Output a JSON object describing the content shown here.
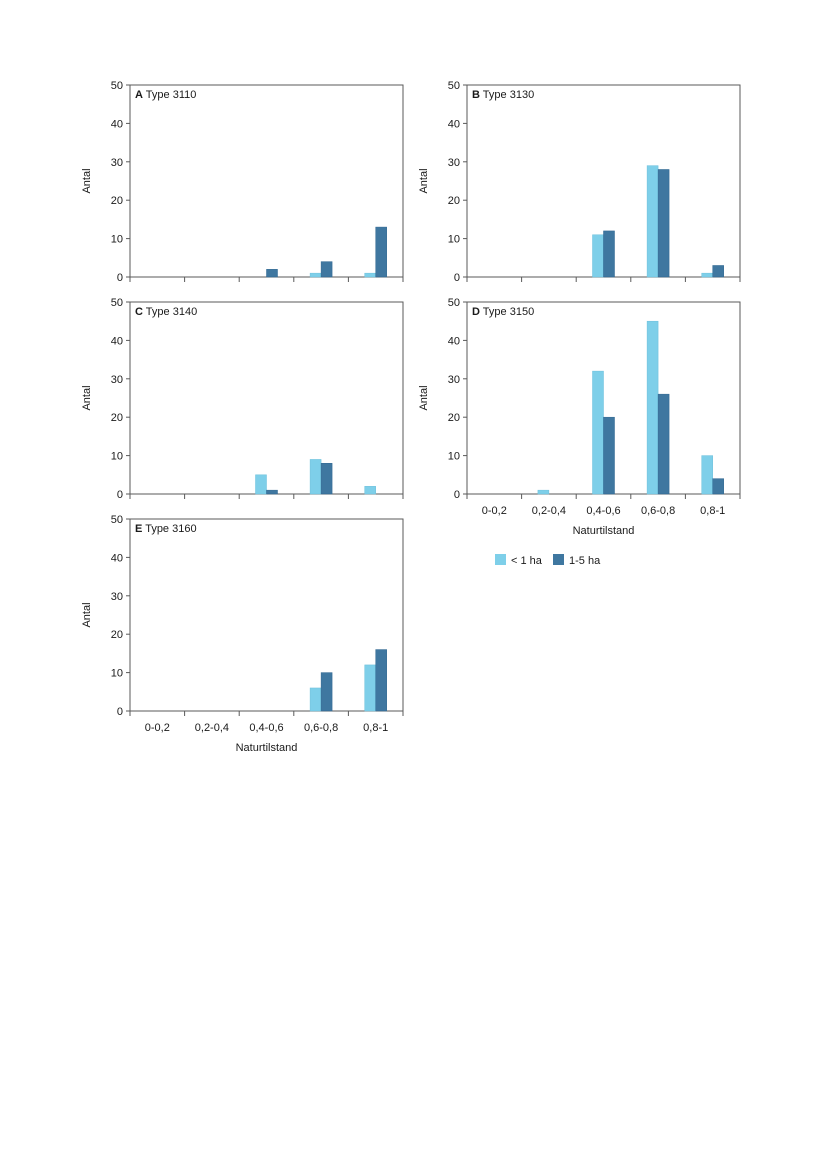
{
  "colors": {
    "light": "#7ecfe9",
    "dark": "#3f77a0",
    "axis": "#5a5a5a"
  },
  "legend": [
    {
      "label": "< 1 ha",
      "color": "#7ecfe9"
    },
    {
      "label": "1-5 ha",
      "color": "#3f77a0"
    }
  ],
  "chart_data": [
    {
      "type": "bar",
      "letter": "A",
      "title": "Type 3110",
      "ylabel": "Antal",
      "xlabel": "",
      "categories": [
        "0-0,2",
        "0,2-0,4",
        "0,4-0,6",
        "0,6-0,8",
        "0,8-1"
      ],
      "show_xticklabels": false,
      "ylim": [
        0,
        50
      ],
      "yticks": [
        0,
        10,
        20,
        30,
        40,
        50
      ],
      "series": [
        {
          "name": "< 1 ha",
          "values": [
            0,
            0,
            0,
            1,
            1
          ]
        },
        {
          "name": "1-5 ha",
          "values": [
            0,
            0,
            2,
            4,
            13
          ]
        }
      ]
    },
    {
      "type": "bar",
      "letter": "B",
      "title": "Type 3130",
      "ylabel": "Antal",
      "xlabel": "",
      "categories": [
        "0-0,2",
        "0,2-0,4",
        "0,4-0,6",
        "0,6-0,8",
        "0,8-1"
      ],
      "show_xticklabels": false,
      "ylim": [
        0,
        50
      ],
      "yticks": [
        0,
        10,
        20,
        30,
        40,
        50
      ],
      "series": [
        {
          "name": "< 1 ha",
          "values": [
            0,
            0,
            11,
            29,
            1
          ]
        },
        {
          "name": "1-5 ha",
          "values": [
            0,
            0,
            12,
            28,
            3
          ]
        }
      ]
    },
    {
      "type": "bar",
      "letter": "C",
      "title": "Type 3140",
      "ylabel": "Antal",
      "xlabel": "",
      "categories": [
        "0-0,2",
        "0,2-0,4",
        "0,4-0,6",
        "0,6-0,8",
        "0,8-1"
      ],
      "show_xticklabels": false,
      "ylim": [
        0,
        50
      ],
      "yticks": [
        0,
        10,
        20,
        30,
        40,
        50
      ],
      "series": [
        {
          "name": "< 1 ha",
          "values": [
            0,
            0,
            5,
            9,
            2
          ]
        },
        {
          "name": "1-5 ha",
          "values": [
            0,
            0,
            1,
            8,
            0
          ]
        }
      ]
    },
    {
      "type": "bar",
      "letter": "D",
      "title": "Type 3150",
      "ylabel": "Antal",
      "xlabel": "Naturtilstand",
      "categories": [
        "0-0,2",
        "0,2-0,4",
        "0,4-0,6",
        "0,6-0,8",
        "0,8-1"
      ],
      "show_xticklabels": true,
      "ylim": [
        0,
        50
      ],
      "yticks": [
        0,
        10,
        20,
        30,
        40,
        50
      ],
      "series": [
        {
          "name": "< 1 ha",
          "values": [
            0,
            1,
            32,
            45,
            10
          ]
        },
        {
          "name": "1-5 ha",
          "values": [
            0,
            0,
            20,
            26,
            4
          ]
        }
      ]
    },
    {
      "type": "bar",
      "letter": "E",
      "title": "Type 3160",
      "ylabel": "Antal",
      "xlabel": "Naturtilstand",
      "categories": [
        "0-0,2",
        "0,2-0,4",
        "0,4-0,6",
        "0,6-0,8",
        "0,8-1"
      ],
      "show_xticklabels": true,
      "ylim": [
        0,
        50
      ],
      "yticks": [
        0,
        10,
        20,
        30,
        40,
        50
      ],
      "series": [
        {
          "name": "< 1 ha",
          "values": [
            0,
            0,
            0,
            6,
            12
          ]
        },
        {
          "name": "1-5 ha",
          "values": [
            0,
            0,
            0,
            10,
            16
          ]
        }
      ]
    }
  ]
}
